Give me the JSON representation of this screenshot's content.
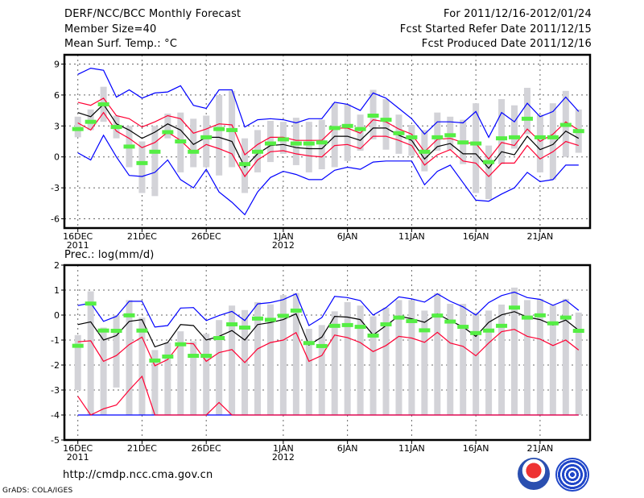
{
  "header": {
    "title": "DERF/NCC/BCC Monthly Forecast",
    "member_size": "Member Size=40",
    "variable": "Mean Surf. Temp.: °C",
    "period": "For 2011/12/16-2012/01/24",
    "started": "Fcst Started Refer Date 2011/12/15",
    "produced": "Fcst Produced Date 2011/12/16"
  },
  "footer": {
    "url": "http://cmdp.ncc.cma.gov.cn",
    "credit": "GrADS: COLA/IGES",
    "logo_bcc": "BCC",
    "logo_ncc": "NCC"
  },
  "colors": {
    "mean": "#000000",
    "spread": "#ff0033",
    "extreme": "#0000ff",
    "observed": "#55ee44",
    "ensemble": "#d3d3d8"
  },
  "chart_data": [
    {
      "type": "line",
      "title": "Mean Surf. Temp.: °C",
      "x_ticks": [
        {
          "day": 0,
          "label": "16DEC",
          "year": "2011"
        },
        {
          "day": 5,
          "label": "21DEC"
        },
        {
          "day": 10,
          "label": "26DEC"
        },
        {
          "day": 16,
          "label": "1JAN",
          "year": "2012"
        },
        {
          "day": 21,
          "label": "6JAN"
        },
        {
          "day": 26,
          "label": "11JAN"
        },
        {
          "day": 31,
          "label": "16JAN"
        },
        {
          "day": 36,
          "label": "21JAN"
        }
      ],
      "y_ticks": [
        -6,
        -3,
        0,
        3,
        6,
        9
      ],
      "ylim": [
        -6.9,
        9.9
      ],
      "grid": true,
      "series": [
        {
          "name": "max",
          "color": "extreme",
          "values": [
            8.0,
            8.6,
            8.4,
            5.8,
            6.5,
            5.7,
            6.2,
            6.3,
            6.9,
            5.0,
            4.7,
            6.5,
            6.5,
            2.9,
            3.6,
            3.7,
            3.6,
            3.3,
            3.7,
            3.7,
            5.3,
            5.1,
            4.5,
            6.2,
            5.7,
            4.7,
            3.7,
            2.2,
            3.4,
            3.4,
            3.3,
            4.4,
            1.9,
            4.3,
            3.4,
            5.2,
            3.9,
            4.4,
            5.8,
            4.4
          ]
        },
        {
          "name": "upper",
          "color": "spread",
          "values": [
            5.3,
            5.0,
            5.7,
            4.0,
            3.7,
            2.9,
            3.4,
            4.0,
            3.7,
            2.3,
            2.7,
            3.2,
            3.1,
            0.2,
            1.2,
            1.9,
            1.9,
            1.6,
            1.6,
            1.6,
            2.8,
            2.8,
            2.3,
            3.6,
            3.4,
            2.7,
            2.2,
            0.5,
            1.7,
            1.8,
            1.4,
            1.3,
            -0.2,
            1.4,
            1.1,
            2.7,
            1.5,
            2.2,
            3.4,
            2.6
          ]
        },
        {
          "name": "mean",
          "color": "mean",
          "values": [
            4.3,
            3.9,
            5.1,
            3.2,
            2.6,
            1.8,
            2.4,
            3.2,
            2.6,
            1.2,
            1.9,
            1.9,
            1.5,
            -1.0,
            0.3,
            1.1,
            1.2,
            0.9,
            0.8,
            0.8,
            2.0,
            2.0,
            1.6,
            2.8,
            2.8,
            2.1,
            1.6,
            -0.2,
            1.0,
            1.3,
            0.3,
            0.3,
            -1.1,
            0.5,
            0.2,
            2.0,
            0.7,
            1.2,
            2.5,
            1.8
          ]
        },
        {
          "name": "lower",
          "color": "spread",
          "values": [
            3.3,
            2.6,
            4.3,
            2.5,
            1.8,
            0.9,
            1.4,
            2.4,
            1.6,
            0.4,
            1.2,
            0.8,
            0.3,
            -1.9,
            -0.3,
            0.5,
            0.6,
            0.3,
            0.1,
            0.0,
            1.1,
            1.2,
            0.8,
            2.0,
            2.0,
            1.6,
            1.1,
            -0.8,
            0.2,
            0.7,
            -0.4,
            -0.6,
            -1.9,
            -0.6,
            -0.6,
            1.1,
            -0.2,
            0.5,
            1.5,
            1.1
          ]
        },
        {
          "name": "min",
          "color": "extreme",
          "values": [
            0.4,
            -0.3,
            2.1,
            0.0,
            -1.8,
            -1.9,
            -1.5,
            -0.3,
            -2.2,
            -3.0,
            -1.2,
            -3.4,
            -4.4,
            -5.6,
            -3.4,
            -2.0,
            -1.4,
            -1.7,
            -2.2,
            -2.2,
            -1.3,
            -1.0,
            -1.2,
            -0.5,
            -0.4,
            -0.4,
            -0.4,
            -2.7,
            -1.4,
            -0.8,
            -2.5,
            -4.2,
            -4.3,
            -3.6,
            -3.0,
            -1.5,
            -2.4,
            -2.2,
            -0.8,
            -0.8
          ]
        }
      ],
      "observed": [
        2.7,
        3.4,
        5.1,
        2.9,
        1.0,
        -0.6,
        0.5,
        2.4,
        1.5,
        0.5,
        1.9,
        2.7,
        2.6,
        -0.7,
        0.5,
        1.3,
        1.7,
        1.3,
        1.3,
        1.4,
        2.8,
        3.0,
        2.7,
        4.0,
        3.6,
        2.3,
        1.9,
        0.5,
        1.9,
        2.1,
        1.4,
        1.3,
        -0.5,
        1.8,
        1.9,
        3.7,
        1.9,
        1.9,
        3.1,
        2.5
      ],
      "ensemble_range": [
        [
          1.9,
          3.9
        ],
        [
          2.6,
          4.6
        ],
        [
          3.4,
          6.8
        ],
        [
          1.8,
          4.0
        ],
        [
          -1.0,
          3.0
        ],
        [
          -3.5,
          1.5
        ],
        [
          -3.8,
          3.0
        ],
        [
          1.8,
          4.2
        ],
        [
          -1.5,
          4.3
        ],
        [
          -1.0,
          3.7
        ],
        [
          -1.0,
          4.0
        ],
        [
          -1.8,
          6.0
        ],
        [
          -1.0,
          6.4
        ],
        [
          -3.5,
          1.8
        ],
        [
          -1.5,
          2.6
        ],
        [
          -0.5,
          3.5
        ],
        [
          0.3,
          3.4
        ],
        [
          -0.8,
          3.8
        ],
        [
          -1.5,
          3.4
        ],
        [
          -1.2,
          3.6
        ],
        [
          -1.0,
          5.2
        ],
        [
          -0.4,
          5.1
        ],
        [
          0.6,
          4.1
        ],
        [
          1.7,
          6.5
        ],
        [
          0.7,
          5.6
        ],
        [
          0.3,
          4.1
        ],
        [
          0.1,
          3.1
        ],
        [
          -1.4,
          2.6
        ],
        [
          0.6,
          4.3
        ],
        [
          0.7,
          3.9
        ],
        [
          -0.7,
          3.6
        ],
        [
          -3.5,
          5.2
        ],
        [
          -4.1,
          1.1
        ],
        [
          -0.7,
          5.6
        ],
        [
          0.8,
          5.0
        ],
        [
          2.2,
          6.7
        ],
        [
          -1.5,
          4.1
        ],
        [
          -2.2,
          5.2
        ],
        [
          0.0,
          6.4
        ],
        [
          0.4,
          4.6
        ]
      ]
    },
    {
      "type": "line",
      "title": "Prec.: log(mm/d)",
      "x_ticks": [
        {
          "day": 0,
          "label": "16DEC",
          "year": "2011"
        },
        {
          "day": 5,
          "label": "21DEC"
        },
        {
          "day": 10,
          "label": "26DEC"
        },
        {
          "day": 16,
          "label": "1JAN",
          "year": "2012"
        },
        {
          "day": 21,
          "label": "6JAN"
        },
        {
          "day": 26,
          "label": "11JAN"
        },
        {
          "day": 31,
          "label": "16JAN"
        },
        {
          "day": 36,
          "label": "21JAN"
        }
      ],
      "y_ticks": [
        -5,
        -4,
        -3,
        -2,
        -1,
        0,
        1,
        2
      ],
      "ylim": [
        -5,
        2
      ],
      "grid": true,
      "series": [
        {
          "name": "min",
          "color": "extreme",
          "values": [
            -4,
            -4,
            -4,
            -4,
            -4,
            -4,
            -4,
            -4,
            -4,
            -4,
            -4,
            -4,
            -4,
            -4,
            -4,
            -4,
            -4,
            -4,
            -4,
            -4,
            -4,
            -4,
            -4,
            -4,
            -4,
            -4,
            -4,
            -4,
            -4,
            -4,
            -4,
            -4,
            -4,
            -4,
            -4,
            -4,
            -4,
            -4,
            -4,
            -4
          ]
        },
        {
          "name": "max",
          "color": "extreme",
          "values": [
            0.38,
            0.48,
            -0.25,
            -0.05,
            0.55,
            0.55,
            -0.48,
            -0.42,
            0.28,
            0.3,
            -0.22,
            -0.02,
            0.15,
            -0.22,
            0.45,
            0.5,
            0.62,
            0.85,
            -0.42,
            -0.1,
            0.75,
            0.7,
            0.58,
            0.0,
            0.3,
            0.73,
            0.65,
            0.52,
            0.85,
            0.55,
            0.33,
            0.0,
            0.5,
            0.78,
            0.92,
            0.7,
            0.63,
            0.39,
            0.6,
            0.19
          ]
        },
        {
          "name": "upper",
          "color": "spread",
          "values": [
            -1.07,
            -1.03,
            -1.85,
            -1.62,
            -1.18,
            -0.88,
            -2.03,
            -1.78,
            -1.12,
            -1.15,
            -1.85,
            -1.5,
            -1.38,
            -1.9,
            -1.35,
            -1.1,
            -1.0,
            -0.7,
            -1.85,
            -1.62,
            -0.8,
            -0.9,
            -1.1,
            -1.46,
            -1.22,
            -0.85,
            -0.92,
            -1.09,
            -0.69,
            -1.12,
            -1.25,
            -1.63,
            -1.12,
            -0.66,
            -0.57,
            -0.85,
            -0.96,
            -1.22,
            -1.0,
            -1.4
          ]
        },
        {
          "name": "lower",
          "color": "spread",
          "values": [
            -3.25,
            -4.0,
            -3.75,
            -3.6,
            -3.0,
            -2.45,
            -4.0,
            -4.0,
            -4.0,
            -4.0,
            -4.0,
            -3.5,
            -4.0,
            -4.0,
            -4.0,
            -4.0,
            -4.0,
            -4.0,
            -4.0,
            -4.0,
            -4.0,
            -4.0,
            -4.0,
            -4.0,
            -4.0,
            -4.0,
            -4.0,
            -4.0,
            -4.0,
            -4.0,
            -4.0,
            -4.0,
            -4.0,
            -4.0,
            -4.0,
            -4.0,
            -4.0,
            -4.0,
            -4.0,
            -4.0
          ]
        },
        {
          "name": "mean",
          "color": "mean",
          "values": [
            -0.38,
            -0.27,
            -1.0,
            -0.82,
            -0.25,
            -0.18,
            -1.27,
            -1.1,
            -0.38,
            -0.42,
            -1.0,
            -0.85,
            -0.62,
            -1.0,
            -0.38,
            -0.3,
            -0.18,
            0.05,
            -1.2,
            -0.88,
            -0.05,
            -0.08,
            -0.18,
            -0.8,
            -0.42,
            -0.04,
            -0.15,
            -0.29,
            0.05,
            -0.23,
            -0.47,
            -0.85,
            -0.29,
            0.01,
            0.14,
            -0.08,
            -0.18,
            -0.4,
            -0.2,
            -0.61
          ]
        }
      ],
      "observed": [
        -1.23,
        0.46,
        -0.62,
        -0.63,
        -0.01,
        -0.62,
        -1.82,
        -1.66,
        -1.17,
        -1.63,
        -1.63,
        -0.92,
        -0.37,
        -0.5,
        -0.14,
        -0.19,
        -0.03,
        0.18,
        -1.12,
        -1.24,
        -0.43,
        -0.4,
        -0.47,
        -0.82,
        -0.37,
        -0.1,
        -0.24,
        -0.61,
        -0.02,
        -0.26,
        -0.47,
        -0.72,
        -0.62,
        -0.43,
        0.3,
        -0.1,
        -0.01,
        -0.33,
        -0.1,
        -0.63
      ],
      "ensemble_range": [
        [
          -3.0,
          -0.8
        ],
        [
          -4,
          0.95
        ],
        [
          -4,
          -0.5
        ],
        [
          -2.9,
          0.0
        ],
        [
          -4,
          0.6
        ],
        [
          -4,
          -0.1
        ],
        [
          -4,
          -1.4
        ],
        [
          -4,
          -1.1
        ],
        [
          -4,
          -0.65
        ],
        [
          -4,
          -1.05
        ],
        [
          -4,
          -0.75
        ],
        [
          -4,
          -0.2
        ],
        [
          -4,
          0.38
        ],
        [
          -4,
          0.2
        ],
        [
          -4,
          0.52
        ],
        [
          -4,
          0.43
        ],
        [
          -4,
          0.8
        ],
        [
          -4,
          0.88
        ],
        [
          -4,
          -0.55
        ],
        [
          -4,
          -0.4
        ],
        [
          -4,
          0.15
        ],
        [
          -4,
          0.52
        ],
        [
          -4,
          0.38
        ],
        [
          -4,
          -0.05
        ],
        [
          -4,
          0.3
        ],
        [
          -4,
          0.6
        ],
        [
          -4,
          0.6
        ],
        [
          -4,
          0.18
        ],
        [
          -4,
          0.88
        ],
        [
          -4,
          0.45
        ],
        [
          -4,
          0.45
        ],
        [
          -4,
          0.1
        ],
        [
          -4,
          0.18
        ],
        [
          -4,
          0.42
        ],
        [
          -4,
          1.1
        ],
        [
          -4,
          0.6
        ],
        [
          -4,
          0.65
        ],
        [
          -4,
          0.4
        ],
        [
          -4,
          0.65
        ],
        [
          -4,
          0.1
        ]
      ]
    }
  ]
}
